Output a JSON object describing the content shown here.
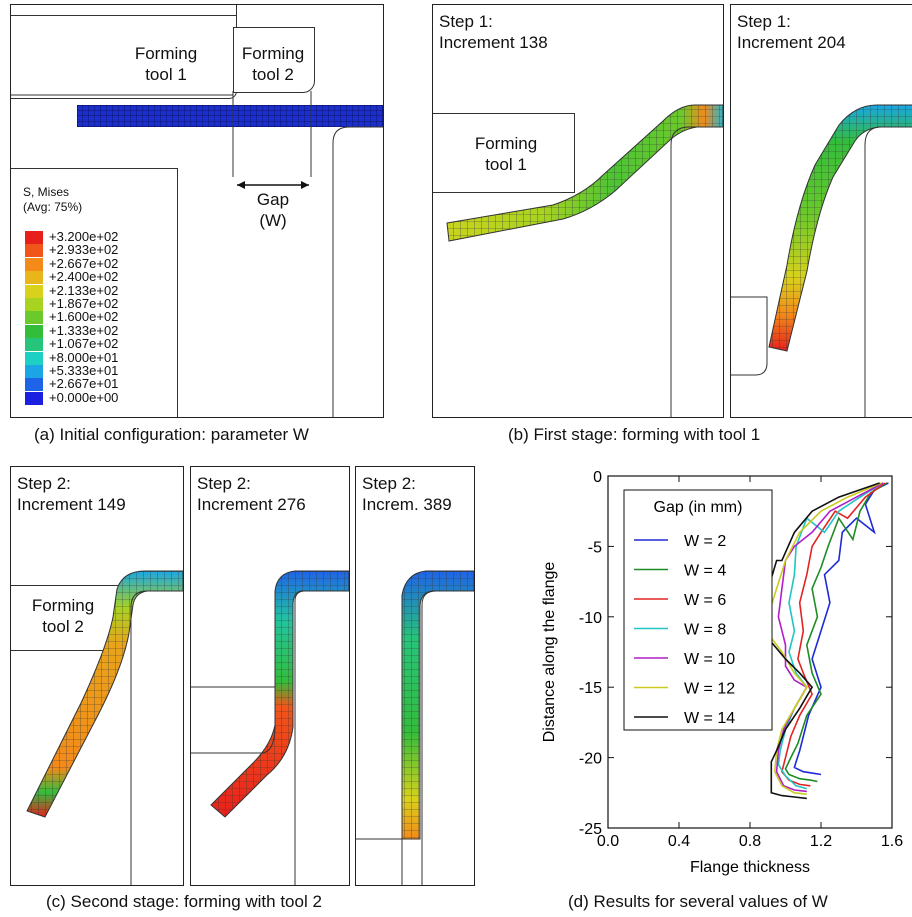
{
  "panel_a": {
    "tool1_label": "Forming\ntool 1",
    "tool2_label": "Forming\ntool 2",
    "gap_label": "Gap\n(W)",
    "legend_title": "S, Mises\n(Avg: 75%)",
    "legend_values": [
      "+3.200e+02",
      "+2.933e+02",
      "+2.667e+02",
      "+2.400e+02",
      "+2.133e+02",
      "+1.867e+02",
      "+1.600e+02",
      "+1.333e+02",
      "+1.067e+02",
      "+8.000e+01",
      "+5.333e+01",
      "+2.667e+01",
      "+0.000e+00"
    ],
    "legend_colors": [
      "#e8201c",
      "#f0561a",
      "#f38a1a",
      "#e8b51a",
      "#d8d21c",
      "#a8d321",
      "#6cc92b",
      "#33bd3b",
      "#27c47b",
      "#1ed0c3",
      "#1aa6e5",
      "#1f63e8",
      "#1b1fe0"
    ],
    "caption": "(a) Initial configuration: parameter W"
  },
  "panel_b": {
    "step1_title": "Step 1:\nIncrement 138",
    "step2_title": "Step 1:\nIncrement 204",
    "tool_label": "Forming\ntool 1",
    "caption": "(b) First stage: forming with tool 1"
  },
  "panel_c": {
    "title1": "Step 2:\nIncrement 149",
    "title2": "Step 2:\nIncrement 276",
    "title3": "Step 2:\nIncrem. 389",
    "tool_label": "Forming\ntool 2",
    "caption": "(c) Second stage: forming with tool 2"
  },
  "chart_data": {
    "type": "line",
    "title": "",
    "xlabel": "Flange thickness",
    "ylabel": "Distance along the flange",
    "xlim": [
      0.0,
      1.6
    ],
    "ylim": [
      -25,
      0
    ],
    "xticks": [
      "0.0",
      "0.4",
      "0.8",
      "1.2",
      "1.6"
    ],
    "yticks": [
      "0",
      "-5",
      "-10",
      "-15",
      "-20",
      "-25"
    ],
    "legend_title": "Gap (in mm)",
    "legend_position": "top-left",
    "series": [
      {
        "name": "W = 2",
        "color": "#1f2bd6",
        "x": [
          1.58,
          1.5,
          1.45,
          1.5,
          1.4,
          1.32,
          1.3,
          1.22,
          1.25,
          1.2,
          1.15,
          1.2,
          1.13,
          1.1,
          1.08,
          1.06,
          1.05,
          1.1,
          1.15,
          1.2
        ],
        "y": [
          -0.5,
          -1,
          -2,
          -4,
          -3,
          -4,
          -6,
          -7,
          -9,
          -11,
          -13,
          -15,
          -17,
          -18.5,
          -19.5,
          -20.3,
          -20.7,
          -21,
          -21.1,
          -21.2
        ]
      },
      {
        "name": "W = 4",
        "color": "#1e8c26",
        "x": [
          1.57,
          1.48,
          1.42,
          1.38,
          1.3,
          1.24,
          1.2,
          1.15,
          1.18,
          1.12,
          1.15,
          1.2,
          1.12,
          1.07,
          1.03,
          1.0,
          1.02,
          1.08,
          1.14,
          1.18
        ],
        "y": [
          -0.5,
          -1.2,
          -2.5,
          -4.5,
          -3,
          -5,
          -6.5,
          -8,
          -10,
          -12,
          -14,
          -15.5,
          -17,
          -19,
          -20,
          -20.8,
          -21.2,
          -21.5,
          -21.6,
          -21.7
        ]
      },
      {
        "name": "W = 6",
        "color": "#e22424",
        "x": [
          1.56,
          1.45,
          1.35,
          1.28,
          1.2,
          1.15,
          1.12,
          1.08,
          1.1,
          1.07,
          1.1,
          1.15,
          1.08,
          1.03,
          1.0,
          0.98,
          1.02,
          1.08,
          1.14
        ],
        "y": [
          -0.5,
          -1.5,
          -3,
          -2.5,
          -4,
          -5,
          -7,
          -9,
          -11,
          -13,
          -14,
          -15.5,
          -17,
          -18.5,
          -20,
          -21,
          -21.6,
          -21.9,
          -22
        ]
      },
      {
        "name": "W = 8",
        "color": "#22c4c4",
        "x": [
          1.55,
          1.42,
          1.3,
          1.22,
          1.12,
          1.06,
          1.05,
          1.02,
          1.05,
          1.02,
          1.06,
          1.12,
          1.05,
          1.0,
          0.97,
          0.96,
          1.0,
          1.06,
          1.12
        ],
        "y": [
          -0.5,
          -1.5,
          -2.5,
          -4,
          -3,
          -5,
          -7,
          -9,
          -11,
          -12.5,
          -14,
          -15,
          -16.5,
          -18,
          -19.5,
          -20.5,
          -21.3,
          -22,
          -22.2
        ]
      },
      {
        "name": "W = 10",
        "color": "#b01fc8",
        "x": [
          1.55,
          1.4,
          1.25,
          1.15,
          1.05,
          1.0,
          0.98,
          0.96,
          1.0,
          1.0,
          1.05,
          1.12,
          1.05,
          0.99,
          0.96,
          0.95,
          0.99,
          1.05,
          1.12
        ],
        "y": [
          -0.5,
          -1.5,
          -2.5,
          -4,
          -5,
          -6,
          -8,
          -10,
          -12,
          -13.5,
          -14.5,
          -15,
          -16.5,
          -18,
          -19.5,
          -21,
          -22,
          -22.3,
          -22.4
        ]
      },
      {
        "name": "W = 12",
        "color": "#c9cc1e",
        "x": [
          1.54,
          1.35,
          1.2,
          1.08,
          1.0,
          0.95,
          0.9,
          0.92,
          0.98,
          1.05,
          1.12,
          1.05,
          0.98,
          0.95,
          0.94,
          0.98,
          1.05,
          1.12
        ],
        "y": [
          -0.5,
          -1.5,
          -2.5,
          -4,
          -6,
          -8,
          -10,
          -11.5,
          -12.5,
          -14,
          -15,
          -16.5,
          -18,
          -19.5,
          -21,
          -22,
          -22.5,
          -22.6
        ]
      },
      {
        "name": "W = 14",
        "color": "#111111",
        "x": [
          1.53,
          1.3,
          1.15,
          1.05,
          0.98,
          0.95,
          0.88,
          0.9,
          1.0,
          1.08,
          1.15,
          1.08,
          1.0,
          0.95,
          0.92,
          0.92,
          0.98,
          1.05,
          1.12
        ],
        "y": [
          -0.5,
          -1.5,
          -2.5,
          -4,
          -6,
          -6,
          -9,
          -11.5,
          -13,
          -14,
          -15,
          -16.5,
          -18,
          -19.5,
          -20.3,
          -22.5,
          -22.7,
          -22.8,
          -22.9
        ]
      }
    ]
  },
  "panel_d": {
    "caption": "(d) Results for several values of W"
  }
}
